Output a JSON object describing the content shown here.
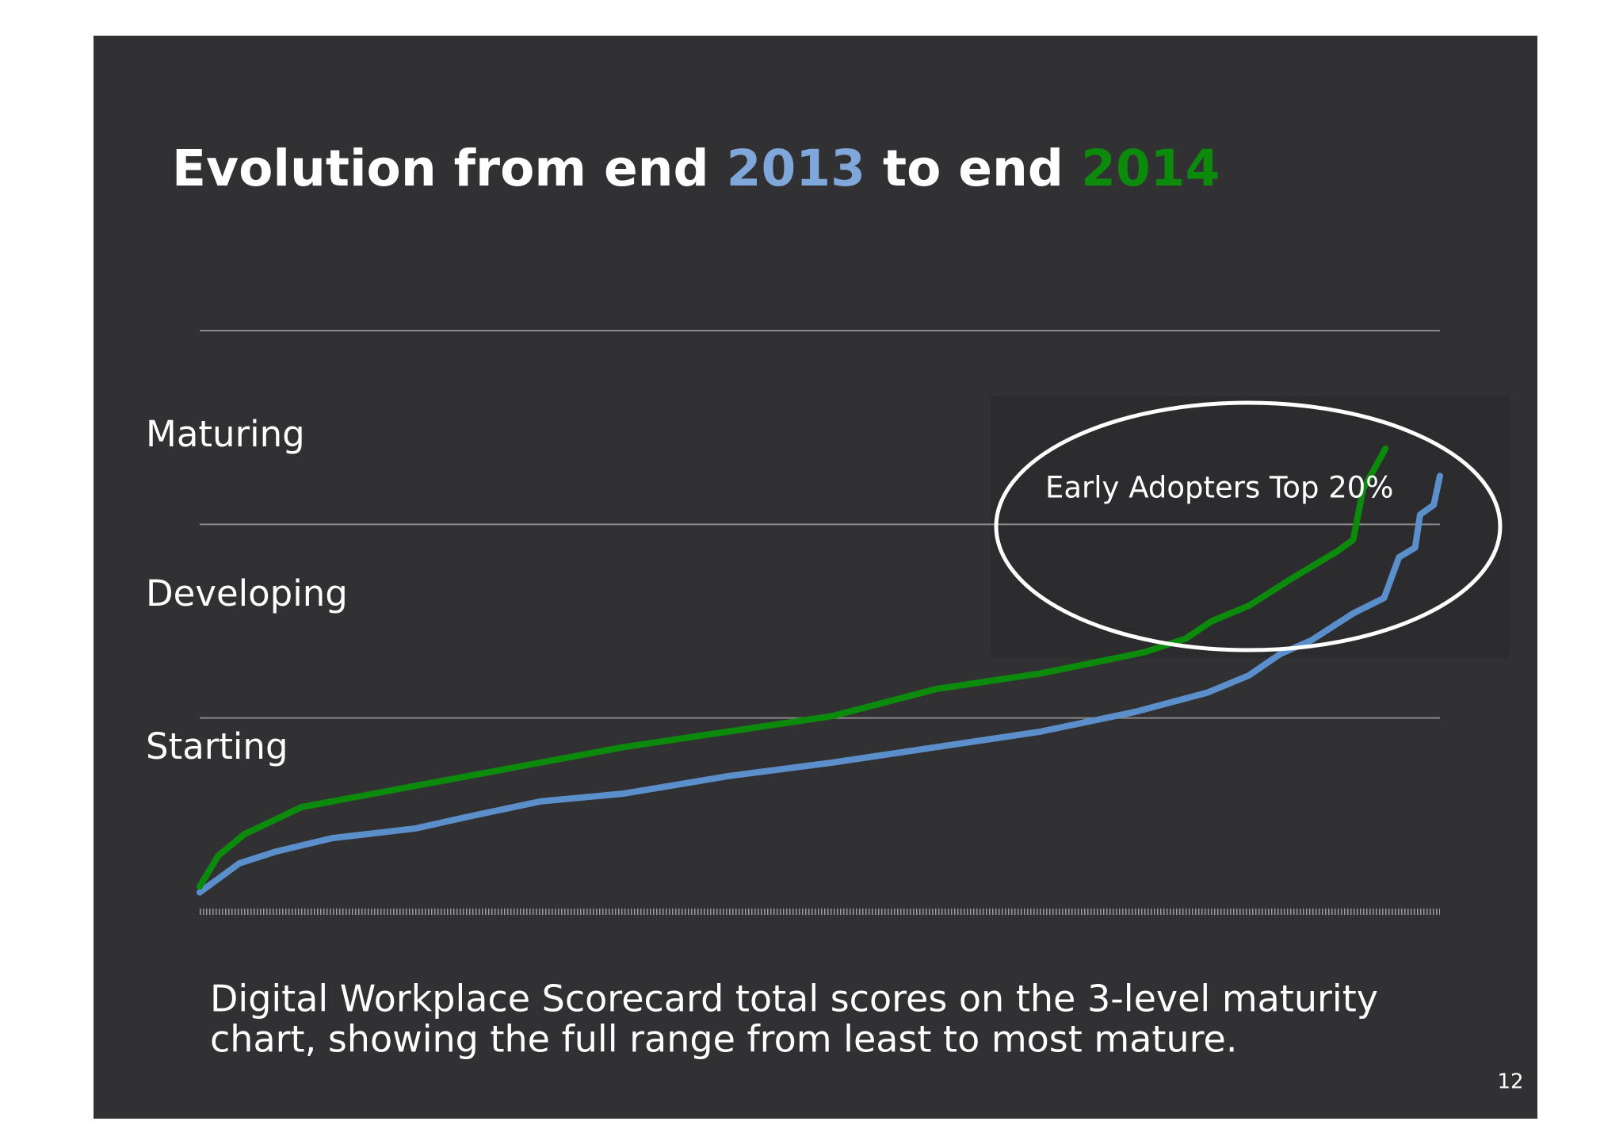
{
  "chart_data": {
    "type": "line",
    "title_parts": [
      "Evolution from end",
      "to end"
    ],
    "levels": [
      "Starting",
      "Developing",
      "Maturing"
    ],
    "annotation": "Early Adopters Top 20%",
    "caption_lines": [
      "Digital Workplace Scorecard total scores on the 3-level maturity",
      "chart, showing the full range from least to most mature."
    ],
    "page_number": "12",
    "xlim": [
      0,
      100
    ],
    "ylim": [
      0,
      3
    ],
    "yticks": [
      0,
      1,
      2,
      3
    ],
    "grid": true,
    "series": [
      {
        "name": "2013",
        "color": "#5b8fcc",
        "x": [
          0,
          3.2,
          6.1,
          10.7,
          17.4,
          21.6,
          27.5,
          34.2,
          42.6,
          51.0,
          59.4,
          67.8,
          75.3,
          81.2,
          84.6,
          87.1,
          89.6,
          93.0,
          95.5,
          96.7,
          98.0,
          98.4,
          99.5,
          100
        ],
        "values": [
          0.1,
          0.25,
          0.31,
          0.38,
          0.43,
          0.49,
          0.57,
          0.61,
          0.7,
          0.77,
          0.85,
          0.93,
          1.03,
          1.13,
          1.22,
          1.33,
          1.4,
          1.54,
          1.62,
          1.83,
          1.88,
          2.05,
          2.1,
          2.25
        ]
      },
      {
        "name": "2014",
        "color": "#0b8a0b",
        "x": [
          0,
          1.5,
          3.6,
          8.2,
          17.4,
          25.8,
          34.2,
          42.6,
          51.0,
          59.4,
          67.8,
          76.2,
          79.5,
          81.6,
          84.6,
          88.3,
          91.7,
          93.0,
          93.8,
          95.0,
          95.6
        ],
        "values": [
          0.13,
          0.29,
          0.4,
          0.54,
          0.65,
          0.75,
          0.85,
          0.93,
          1.01,
          1.15,
          1.23,
          1.34,
          1.41,
          1.5,
          1.58,
          1.73,
          1.86,
          1.92,
          2.18,
          2.32,
          2.39
        ]
      }
    ]
  }
}
